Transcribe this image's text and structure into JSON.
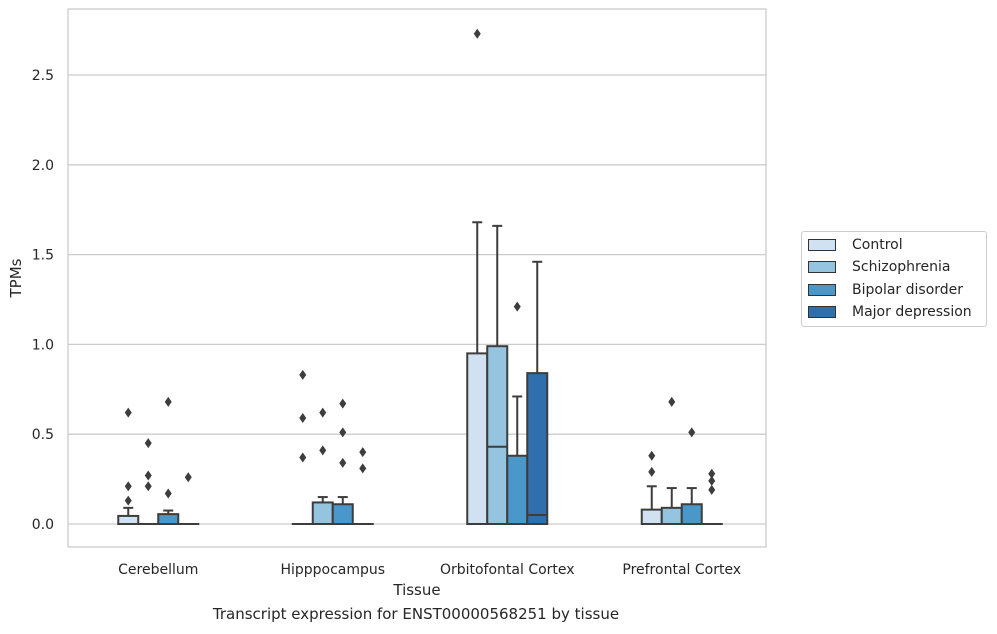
{
  "caption": "Transcript expression for ENST00000568251 by tissue",
  "legend": {
    "items": [
      {
        "label": "Control",
        "color": "#d0e1f2"
      },
      {
        "label": "Schizophrenia",
        "color": "#94c4df"
      },
      {
        "label": "Bipolar disorder",
        "color": "#4a98c9"
      },
      {
        "label": "Major depression",
        "color": "#2e6fac"
      }
    ]
  },
  "chart_data": {
    "type": "box",
    "xlabel": "Tissue",
    "ylabel": "TPMs",
    "ylim": [
      -0.13,
      2.87
    ],
    "yticks": [
      "0.0",
      "0.5",
      "1.0",
      "1.5",
      "2.0",
      "2.5"
    ],
    "grid": "horizontal",
    "legend_position": "right",
    "categories": [
      "Cerebellum",
      "Hipppocampus",
      "Orbitofontal Cortex",
      "Prefrontal Cortex"
    ],
    "series": [
      {
        "name": "Control",
        "color": "#d0e1f2",
        "boxes": [
          {
            "q1": 0.0,
            "median": 0.0,
            "q3": 0.045,
            "whislo": 0.0,
            "whishi": 0.09,
            "fliers": [
              0.13,
              0.21,
              0.62
            ]
          },
          {
            "q1": 0.0,
            "median": 0.0,
            "q3": 0.0,
            "whislo": 0.0,
            "whishi": 0.0,
            "fliers": [
              0.37,
              0.59,
              0.83
            ]
          },
          {
            "q1": 0.0,
            "median": 0.0,
            "q3": 0.95,
            "whislo": 0.0,
            "whishi": 1.68,
            "fliers": [
              2.73
            ]
          },
          {
            "q1": 0.0,
            "median": 0.0,
            "q3": 0.08,
            "whislo": 0.0,
            "whishi": 0.21,
            "fliers": [
              0.29,
              0.38
            ]
          }
        ]
      },
      {
        "name": "Schizophrenia",
        "color": "#94c4df",
        "boxes": [
          {
            "q1": 0.0,
            "median": 0.0,
            "q3": 0.0,
            "whislo": 0.0,
            "whishi": 0.0,
            "fliers": [
              0.21,
              0.27,
              0.45
            ]
          },
          {
            "q1": 0.0,
            "median": 0.0,
            "q3": 0.12,
            "whislo": 0.0,
            "whishi": 0.15,
            "fliers": [
              0.41,
              0.62
            ]
          },
          {
            "q1": 0.0,
            "median": 0.43,
            "q3": 0.99,
            "whislo": 0.0,
            "whishi": 1.66,
            "fliers": []
          },
          {
            "q1": 0.0,
            "median": 0.0,
            "q3": 0.09,
            "whislo": 0.0,
            "whishi": 0.2,
            "fliers": [
              0.68
            ]
          }
        ]
      },
      {
        "name": "Bipolar disorder",
        "color": "#4a98c9",
        "boxes": [
          {
            "q1": 0.0,
            "median": 0.0,
            "q3": 0.055,
            "whislo": 0.0,
            "whishi": 0.075,
            "fliers": [
              0.17,
              0.68
            ]
          },
          {
            "q1": 0.0,
            "median": 0.0,
            "q3": 0.11,
            "whislo": 0.0,
            "whishi": 0.15,
            "fliers": [
              0.34,
              0.51,
              0.67
            ]
          },
          {
            "q1": 0.0,
            "median": 0.0,
            "q3": 0.38,
            "whislo": 0.0,
            "whishi": 0.71,
            "fliers": [
              1.21
            ]
          },
          {
            "q1": 0.0,
            "median": 0.0,
            "q3": 0.11,
            "whislo": 0.0,
            "whishi": 0.2,
            "fliers": [
              0.51
            ]
          }
        ]
      },
      {
        "name": "Major depression",
        "color": "#2e6fac",
        "boxes": [
          {
            "q1": 0.0,
            "median": 0.0,
            "q3": 0.0,
            "whislo": 0.0,
            "whishi": 0.0,
            "fliers": [
              0.26
            ]
          },
          {
            "q1": 0.0,
            "median": 0.0,
            "q3": 0.0,
            "whislo": 0.0,
            "whishi": 0.0,
            "fliers": [
              0.31,
              0.4
            ]
          },
          {
            "q1": 0.0,
            "median": 0.05,
            "q3": 0.84,
            "whislo": 0.0,
            "whishi": 1.46,
            "fliers": []
          },
          {
            "q1": 0.0,
            "median": 0.0,
            "q3": 0.0,
            "whislo": 0.0,
            "whishi": 0.0,
            "fliers": [
              0.19,
              0.24,
              0.28
            ]
          }
        ]
      }
    ]
  }
}
